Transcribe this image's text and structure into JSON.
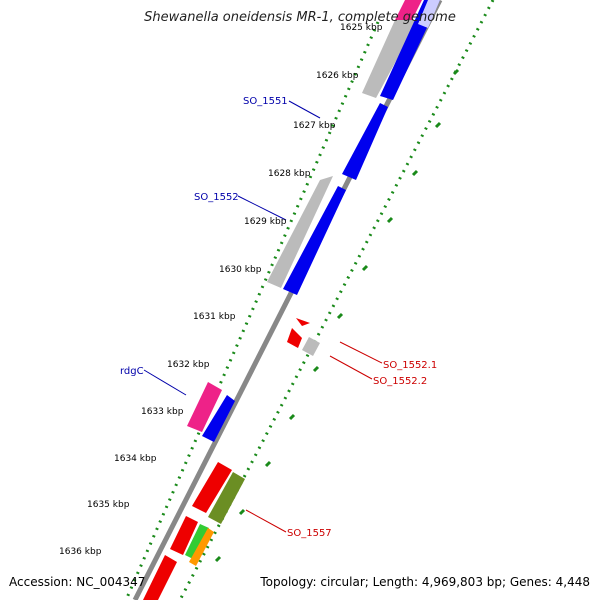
{
  "title": "Shewanella oneidensis MR-1, complete genome",
  "footer": {
    "accession": "Accession: NC_004347",
    "summary": "Topology: circular; Length: 4,969,803 bp; Genes: 4,448"
  },
  "ticks": [
    "1625 kbp",
    "1626 kbp",
    "1627 kbp",
    "1628 kbp",
    "1629 kbp",
    "1630 kbp",
    "1631 kbp",
    "1632 kbp",
    "1633 kbp",
    "1634 kbp",
    "1635 kbp",
    "1636 kbp"
  ],
  "gene_labels": {
    "so_1551": "SO_1551",
    "so_1552": "SO_1552",
    "rdgc": "rdgC",
    "so_1552_1": "SO_1552.1",
    "so_1552_2": "SO_1552.2",
    "so_1557": "SO_1557"
  },
  "colors": {
    "backbone": "#888888",
    "dots": "#1a8a1a",
    "blue": "#0000ee",
    "red": "#ee0000",
    "gray": "#bbbbbb",
    "pink": "#ee2288",
    "olive": "#6b8e23",
    "green": "#33cc33",
    "orange": "#ff9900",
    "label_blue": "#0000aa",
    "label_red": "#cc0000"
  }
}
